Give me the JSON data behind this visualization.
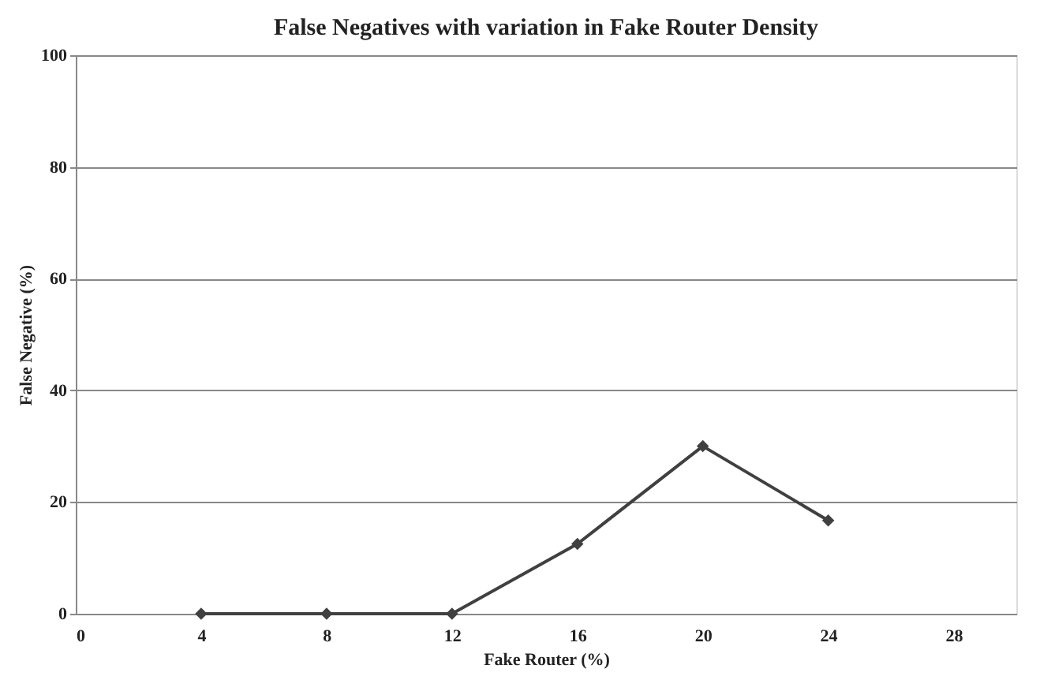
{
  "chart_data": {
    "type": "line",
    "title": "False Negatives with variation in Fake Router Density",
    "xlabel": "Fake Router (%)",
    "ylabel": "False Negative (%)",
    "x": [
      4,
      8,
      12,
      16,
      20,
      24
    ],
    "series": [
      {
        "color": "#404040",
        "values": [
          0,
          0,
          0,
          12.5,
          30,
          16.7
        ]
      }
    ],
    "xlim": [
      0,
      30
    ],
    "xticks": [
      0,
      4,
      8,
      12,
      16,
      20,
      24,
      28
    ],
    "ylim": [
      0,
      100
    ],
    "yticks": [
      0,
      20,
      40,
      60,
      80,
      100
    ],
    "grid": "y",
    "marker": "diamond",
    "line_style": "solid",
    "legend": false
  }
}
